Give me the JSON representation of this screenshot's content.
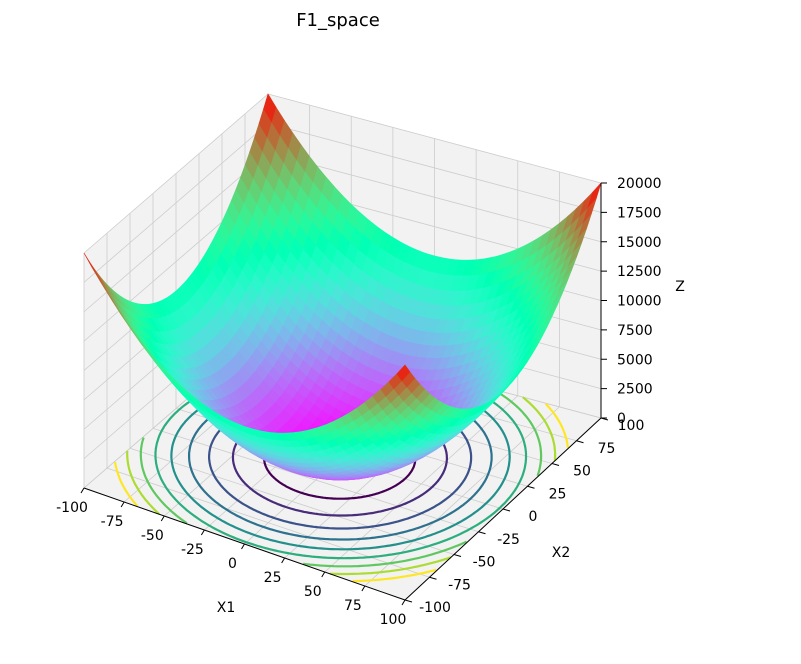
{
  "chart_data": {
    "type": "surface3d",
    "title": "F1_space",
    "function": "Z = X1^2 + X2^2",
    "xlabel": "X1",
    "ylabel": "X2",
    "zlabel": "Z",
    "xlim": [
      -100,
      100
    ],
    "ylim": [
      -100,
      100
    ],
    "zlim": [
      0,
      20000
    ],
    "x_ticks": [
      "-100",
      "-75",
      "-50",
      "-25",
      "0",
      "25",
      "50",
      "75",
      "100"
    ],
    "y_ticks": [
      "-100",
      "-75",
      "-50",
      "-25",
      "0",
      "25",
      "50",
      "75",
      "100"
    ],
    "z_ticks": [
      "0",
      "2500",
      "5000",
      "7500",
      "10000",
      "12500",
      "15000",
      "17500",
      "20000"
    ],
    "x_tick_values": [
      -100,
      -75,
      -50,
      -25,
      0,
      25,
      50,
      75,
      100
    ],
    "y_tick_values": [
      -100,
      -75,
      -50,
      -25,
      0,
      25,
      50,
      75,
      100
    ],
    "z_tick_values": [
      0,
      2500,
      5000,
      7500,
      10000,
      12500,
      15000,
      17500,
      20000
    ],
    "colormap": "rainbow",
    "contour_levels": [
      1600,
      3200,
      4800,
      6400,
      8000,
      9600,
      11200,
      12800,
      14400
    ],
    "contour_colormap": "viridis",
    "grid": true,
    "pane_color": "#f2f2f2",
    "grid_color": "#cccccc"
  }
}
